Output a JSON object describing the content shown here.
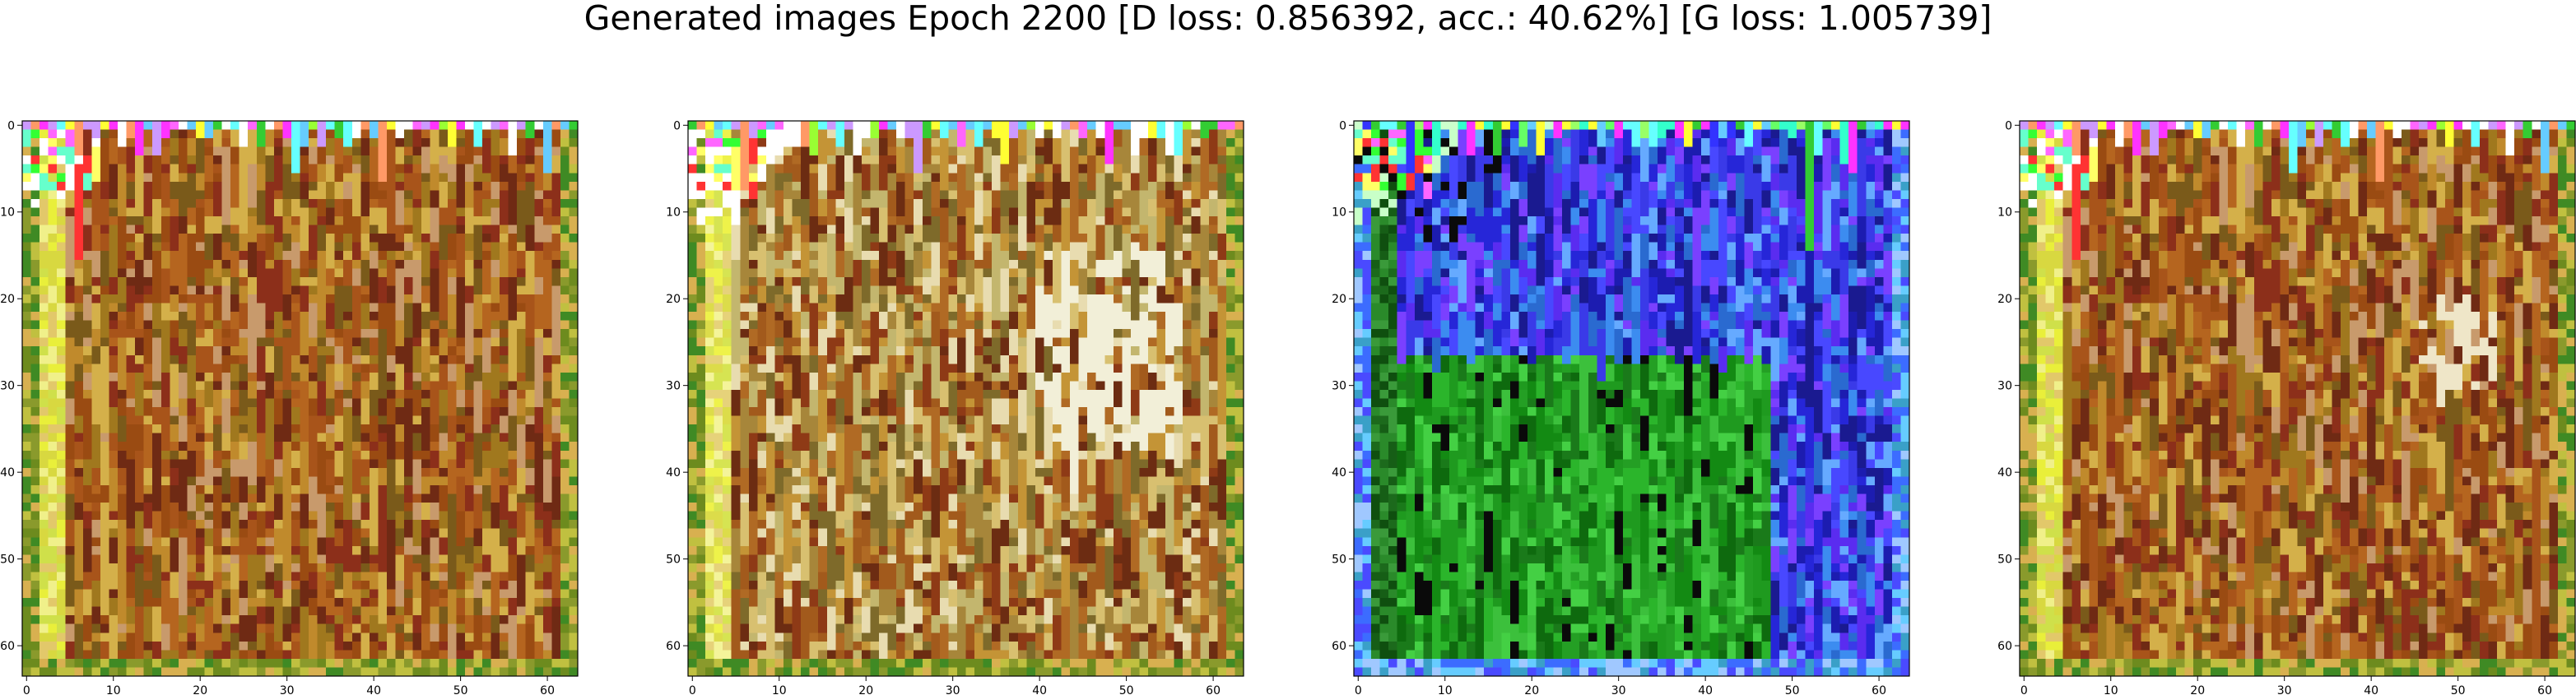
{
  "figure": {
    "title": "Generated images Epoch 2200 [D loss: 0.856392, acc.: 40.62%] [G loss: 1.005739]"
  },
  "chart_data": [
    {
      "type": "heatmap",
      "grid": false,
      "xlim": [
        -0.5,
        63.5
      ],
      "ylim": [
        63.5,
        -0.5
      ],
      "xticks": [
        0,
        10,
        20,
        30,
        40,
        50,
        60
      ],
      "yticks": [
        0,
        10,
        20,
        30,
        40,
        50,
        60
      ],
      "texture_seed": 11,
      "palette": [
        "#9a4b12",
        "#a8541a",
        "#b5651f",
        "#8c2f1a",
        "#c08a2c",
        "#6f2a14",
        "#d4b04a",
        "#7a5a1a",
        "#a0781e",
        "#c89a6c"
      ],
      "left_band_colors": [
        "#e9ef3a",
        "#cfe04a",
        "#f0f08a",
        "#d8d840",
        "#e2c86a"
      ],
      "edge_colors": [
        "#6d8b1e",
        "#8a9a2c",
        "#c0c040",
        "#3f8a24",
        "#d8b050"
      ],
      "top_row_colors": [
        "#ff66ff",
        "#66ffff",
        "#33cc33",
        "#ffff33",
        "#ff33ff",
        "#99ff33",
        "#ffffff",
        "#cc99ff",
        "#ff9966",
        "#66ccff"
      ],
      "corner_colors": [
        "#ffffff",
        "#ff66ff",
        "#66ffcc",
        "#ffff66",
        "#ff3333",
        "#33ff33"
      ],
      "corner_glow": "#ffffff",
      "light_patch": null
    },
    {
      "type": "heatmap",
      "grid": false,
      "xlim": [
        -0.5,
        63.5
      ],
      "ylim": [
        63.5,
        -0.5
      ],
      "xticks": [
        0,
        10,
        20,
        30,
        40,
        50,
        60
      ],
      "yticks": [
        0,
        10,
        20,
        30,
        40,
        50,
        60
      ],
      "texture_seed": 29,
      "palette": [
        "#a25a1c",
        "#b06a24",
        "#8e3a16",
        "#c49436",
        "#6c2c12",
        "#d8c070",
        "#e8dcb0",
        "#7e6a2a",
        "#a7863a",
        "#c3b66e"
      ],
      "left_band_colors": [
        "#eef24a",
        "#d6e452",
        "#f4f49a",
        "#dcdc4a",
        "#e6d27a"
      ],
      "edge_colors": [
        "#6d8b1e",
        "#8a9a2c",
        "#c0c040",
        "#3f8a24",
        "#d8b050"
      ],
      "top_row_colors": [
        "#ff66ff",
        "#66ffff",
        "#33cc33",
        "#ffff33",
        "#ff33ff",
        "#99ff33",
        "#ffffff",
        "#cc99ff",
        "#ff9966",
        "#66ccff"
      ],
      "corner_colors": [
        "#ffffff",
        "#ff66ff",
        "#66ffcc",
        "#ffff66",
        "#ff3333",
        "#33ff33"
      ],
      "corner_glow": "#ffffff",
      "light_patch": {
        "x": [
          40,
          56
        ],
        "y": [
          14,
          36
        ],
        "color": "#f2efd8"
      }
    },
    {
      "type": "heatmap",
      "grid": false,
      "xlim": [
        -0.5,
        63.5
      ],
      "ylim": [
        63.5,
        -0.5
      ],
      "xticks": [
        0,
        10,
        20,
        30,
        40,
        50,
        60
      ],
      "yticks": [
        0,
        10,
        20,
        30,
        40,
        50,
        60
      ],
      "texture_seed": 47,
      "palette": [
        "#2626d8",
        "#3a3ae8",
        "#1c1cb0",
        "#5a2cf0",
        "#4848ff",
        "#2a6ad0",
        "#3c8cf0",
        "#7a40ff",
        "#1a1a90",
        "#66aaff"
      ],
      "lower_palette": [
        "#1f9a1f",
        "#2bb52b",
        "#138a13",
        "#3cc03c",
        "#0e6a0e",
        "#44d044",
        "#1a7a1a",
        "#249f24"
      ],
      "lower_region": {
        "y_from": 27,
        "x_to": 47
      },
      "dark_accent": "#0a0a0a",
      "left_band_colors": [
        "#1c6a1c",
        "#2a8a2a",
        "#0f4f0f",
        "#3a9a3a",
        "#165e16"
      ],
      "edge_colors": [
        "#3aa0c8",
        "#66ccff",
        "#3c6cff",
        "#a0c8ff",
        "#4a4aff"
      ],
      "top_row_colors": [
        "#66ffff",
        "#33cc33",
        "#ffff33",
        "#ff33ff",
        "#66ff66",
        "#33ffcc",
        "#ccffcc",
        "#99ff66",
        "#3333ff",
        "#66ccff"
      ],
      "corner_colors": [
        "#ff3333",
        "#33ff33",
        "#ffff66",
        "#0a0a0a",
        "#66ffcc",
        "#ff66ff"
      ],
      "corner_glow": "#c8ffc8",
      "light_patch": null
    },
    {
      "type": "heatmap",
      "grid": false,
      "xlim": [
        -0.5,
        63.5
      ],
      "ylim": [
        63.5,
        -0.5
      ],
      "xticks": [
        0,
        10,
        20,
        30,
        40,
        50,
        60
      ],
      "yticks": [
        0,
        10,
        20,
        30,
        40,
        50,
        60
      ],
      "texture_seed": 11,
      "palette": [
        "#9a4b12",
        "#a8541a",
        "#b5651f",
        "#8c2f1a",
        "#c08a2c",
        "#6f2a14",
        "#d4b04a",
        "#7a5a1a",
        "#a0781e",
        "#c89a6c"
      ],
      "left_band_colors": [
        "#e9ef3a",
        "#cfe04a",
        "#f0f08a",
        "#d8d840",
        "#e2c86a"
      ],
      "edge_colors": [
        "#6d8b1e",
        "#8a9a2c",
        "#c0c040",
        "#3f8a24",
        "#d8b050"
      ],
      "top_row_colors": [
        "#ff66ff",
        "#66ffff",
        "#33cc33",
        "#ffff33",
        "#ff33ff",
        "#99ff33",
        "#ffffff",
        "#cc99ff",
        "#ff9966",
        "#66ccff"
      ],
      "corner_colors": [
        "#ffffff",
        "#ff66ff",
        "#66ffcc",
        "#ffff66",
        "#ff3333",
        "#33ff33"
      ],
      "corner_glow": "#ffffff",
      "light_patch": {
        "x": [
          46,
          54
        ],
        "y": [
          20,
          30
        ],
        "color": "#efe6c8"
      }
    }
  ]
}
